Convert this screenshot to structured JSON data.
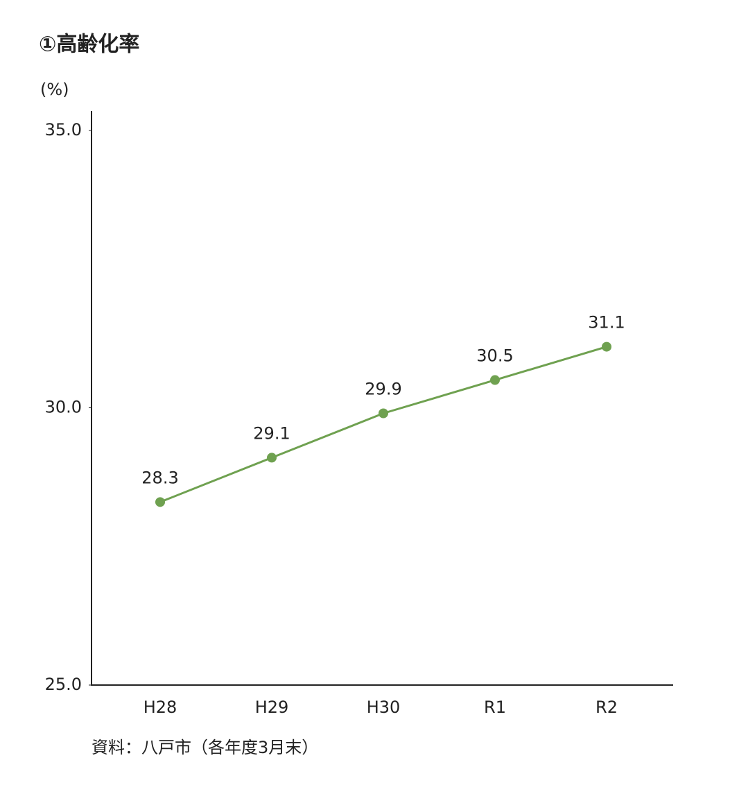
{
  "chart_data": {
    "type": "line",
    "title": "①高齢化率",
    "y_label": "(%)",
    "source": "資料：八戸市（各年度3月末）",
    "categories": [
      "H28",
      "H29",
      "H30",
      "R1",
      "R2"
    ],
    "series": [
      {
        "name": "高齢化率",
        "color": "#6fa150",
        "values": [
          28.3,
          29.1,
          29.9,
          30.5,
          31.1
        ]
      }
    ],
    "ylim": [
      25,
      35
    ],
    "yticks": [
      {
        "value": 25,
        "label": "25.0"
      },
      {
        "value": 30,
        "label": "30.0"
      },
      {
        "value": 35,
        "label": "35.0"
      }
    ],
    "grid": false
  }
}
